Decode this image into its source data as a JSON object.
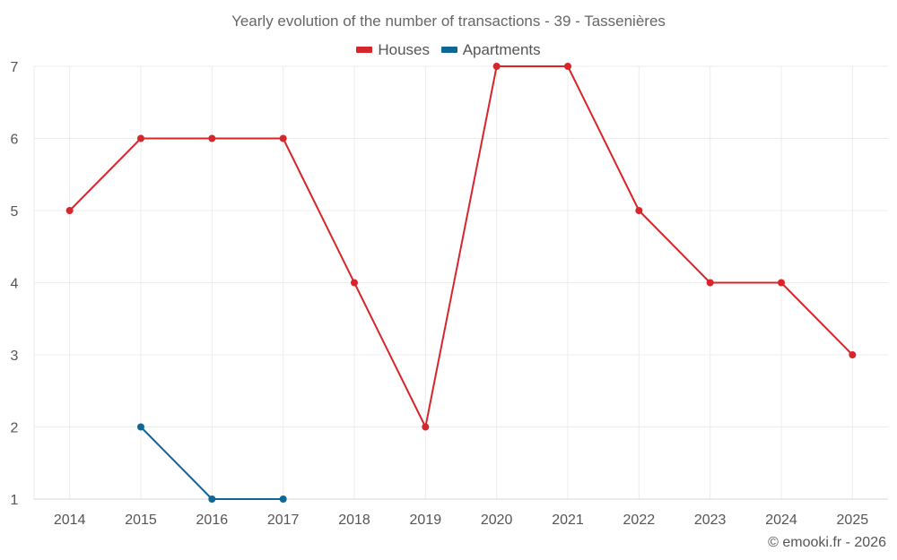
{
  "chart_data": {
    "type": "line",
    "title": "Yearly evolution of the number of transactions - 39 - Tassenières",
    "xlabel": "",
    "ylabel": "",
    "categories": [
      "2014",
      "2015",
      "2016",
      "2017",
      "2018",
      "2019",
      "2020",
      "2021",
      "2022",
      "2023",
      "2024",
      "2025"
    ],
    "ylim": [
      1,
      7
    ],
    "yticks": [
      1,
      2,
      3,
      4,
      5,
      6,
      7
    ],
    "grid": true,
    "legend_position": "top-center",
    "series": [
      {
        "name": "Houses",
        "color": "#d7262b",
        "values": [
          5,
          6,
          6,
          6,
          4,
          2,
          7,
          7,
          5,
          4,
          4,
          3
        ]
      },
      {
        "name": "Apartments",
        "color": "#0f6797",
        "values": [
          null,
          2,
          1,
          1,
          null,
          null,
          null,
          null,
          null,
          null,
          null,
          null
        ]
      }
    ]
  },
  "credit": "© emooki.fr - 2026"
}
